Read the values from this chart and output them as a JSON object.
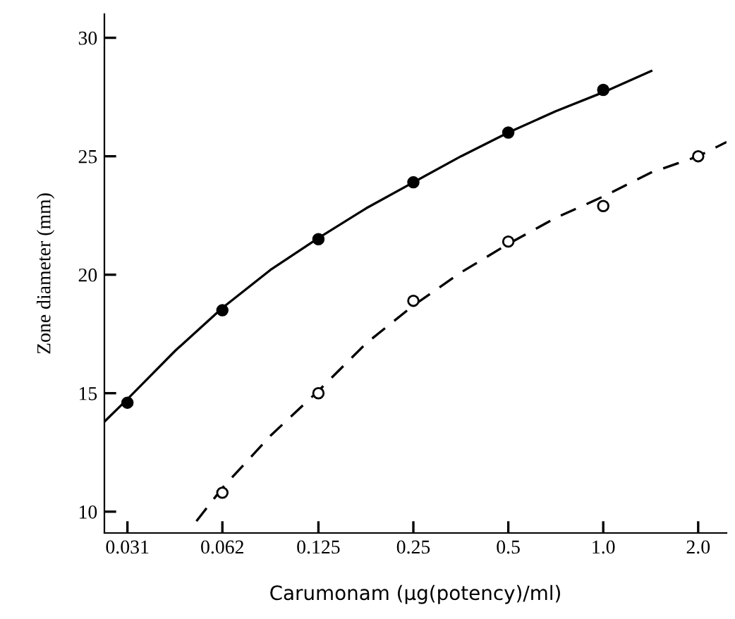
{
  "chart_data": {
    "type": "scatter",
    "xlabel": "Carumonam (μg(potency)/ml)",
    "ylabel": "Zone diameter (mm)",
    "log": "x",
    "xlim": [
      0.0262,
      2.46
    ],
    "ylim": [
      9.1,
      31.0
    ],
    "xticks": [
      0.031,
      0.062,
      0.125,
      0.25,
      0.5,
      {
        "value": 1,
        "label": "1.0"
      },
      {
        "value": 2,
        "label": "2.0"
      }
    ],
    "yticks": [
      10,
      15,
      20,
      25,
      30
    ],
    "grid": false,
    "legend": false,
    "series": [
      {
        "marker": "circle",
        "color": "#000000",
        "x": [
          0.031,
          0.062,
          0.125,
          0.25,
          0.5,
          1.0
        ],
        "values": [
          14.6,
          18.5,
          21.5,
          23.9,
          26.0,
          27.8
        ]
      },
      {
        "marker": "circle",
        "color": "#ffffff",
        "x": [
          0.062,
          0.125,
          0.25,
          0.5,
          1.0,
          2.0
        ],
        "values": [
          10.8,
          15.0,
          18.9,
          21.4,
          22.9,
          25.0
        ]
      },
      {
        "type": "line",
        "line_style": "solid",
        "color": "#000000",
        "x": [
          0.0262,
          0.031,
          0.044,
          0.062,
          0.088,
          0.125,
          0.177,
          0.25,
          0.354,
          0.5,
          0.707,
          1.0,
          1.42
        ],
        "values": [
          13.8,
          14.75,
          16.8,
          18.6,
          20.2,
          21.55,
          22.8,
          23.9,
          25.0,
          26.0,
          26.9,
          27.7,
          28.6
        ]
      },
      {
        "type": "line",
        "line_style": "dashed",
        "color": "#000000",
        "x": [
          0.0513,
          0.062,
          0.088,
          0.125,
          0.177,
          0.25,
          0.354,
          0.5,
          0.707,
          1.0,
          1.41,
          2.0,
          2.46
        ],
        "values": [
          9.6,
          11.0,
          13.2,
          15.1,
          17.1,
          18.7,
          20.1,
          21.3,
          22.4,
          23.3,
          24.3,
          25.0,
          25.6
        ]
      }
    ]
  }
}
